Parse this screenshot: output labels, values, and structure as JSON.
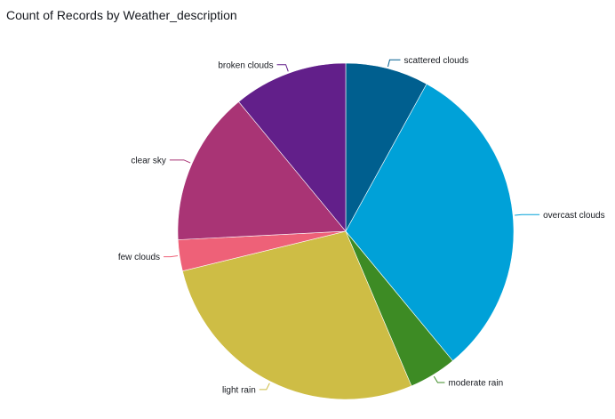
{
  "chart_data": {
    "type": "pie",
    "title": "Count of Records by Weather_description",
    "legend": "none",
    "slices": [
      {
        "label": "scattered clouds",
        "value": 8.0,
        "color": "#005f8f"
      },
      {
        "label": "overcast clouds",
        "value": 31.0,
        "color": "#00a1d8"
      },
      {
        "label": "moderate rain",
        "value": 4.6,
        "color": "#3d8b24"
      },
      {
        "label": "light rain",
        "value": 27.6,
        "color": "#cebd45"
      },
      {
        "label": "few clouds",
        "value": 3.0,
        "color": "#ee6178"
      },
      {
        "label": "clear sky",
        "value": 14.8,
        "color": "#a93475"
      },
      {
        "label": "broken clouds",
        "value": 11.0,
        "color": "#621f8a"
      }
    ]
  }
}
